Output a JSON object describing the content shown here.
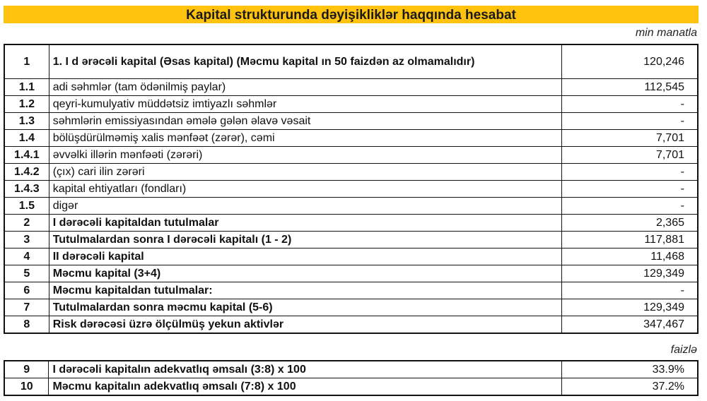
{
  "title": "Kapital strukturunda dəyişikliklər haqqında hesabat",
  "unit_main": "min manatla",
  "unit_ratio": "faizlə",
  "rows": [
    {
      "num": "1",
      "label": "1. I d ərəcəli kapital (Əsas kapital) (Məcmu kapital ın 50 faizdən  az olmamalıdır)",
      "value": "120,246",
      "bold": true
    },
    {
      "num": "1.1",
      "label": "adi səhmlər (tam ödənilmiş paylar)",
      "value": "112,545",
      "bold": false
    },
    {
      "num": "1.2",
      "label": "qeyri-kumulyativ müddətsiz imtiyazlı səhmlər",
      "value": "-",
      "bold": false
    },
    {
      "num": "1.3",
      "label": "səhmlərin emissiyasından əmələ gələn əlavə vəsait",
      "value": "-",
      "bold": false
    },
    {
      "num": "1.4",
      "label": "bölüşdürülməmiş xalis mənfəət (zərər), cəmi",
      "value": "7,701",
      "bold": false
    },
    {
      "num": "1.4.1",
      "label": "əvvəlki illərin mənfəəti (zərəri)",
      "value": "7,701",
      "bold": false
    },
    {
      "num": "1.4.2",
      "label": "(çıx) cari ilin zərəri",
      "value": "-",
      "bold": false
    },
    {
      "num": "1.4.3",
      "label": "kapital ehtiyatları (fondları)",
      "value": "-",
      "bold": false
    },
    {
      "num": "1.5",
      "label": "digər",
      "value": "-",
      "bold": false
    },
    {
      "num": "2",
      "label": "I dərəcəli kapitaldan tutulmalar",
      "value": "2,365",
      "bold": true
    },
    {
      "num": "3",
      "label": "Tutulmalardan  sonra I dərəcəli kapitalı (1 - 2)",
      "value": "117,881",
      "bold": true
    },
    {
      "num": "4",
      "label": "II dərəcəli  kapital",
      "value": "11,468",
      "bold": true
    },
    {
      "num": "5",
      "label": "Məcmu kapital (3+4)",
      "value": "129,349",
      "bold": true
    },
    {
      "num": "6",
      "label": "Məcmu kapitaldan tutulmalar:",
      "value": "-",
      "bold": true
    },
    {
      "num": "7",
      "label": "Tutulmalardan sonra məcmu kapital (5-6)",
      "value": "129,349",
      "bold": true
    },
    {
      "num": "8",
      "label": "Risk dərəcəsi üzrə ölçülmüş yekun aktivlər",
      "value": "347,467",
      "bold": true
    }
  ],
  "ratios": [
    {
      "num": "9",
      "label": "I dərəcəli  kapitalın  adekvatlıq əmsalı (3:8) x 100",
      "value": "33.9%",
      "bold": true
    },
    {
      "num": "10",
      "label": "Məcmu kapitalın  adekvatlıq  əmsalı (7:8) x 100",
      "value": "37.2%",
      "bold": true
    }
  ]
}
